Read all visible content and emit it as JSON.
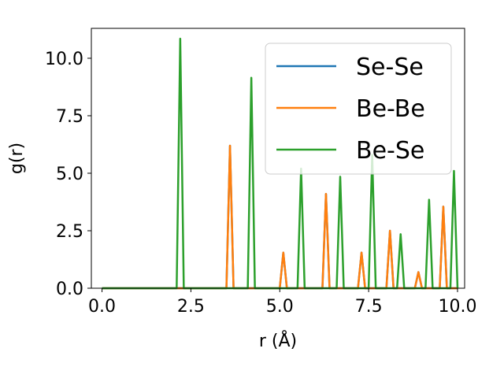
{
  "chart_data": {
    "type": "line",
    "xlabel": "r (Å)",
    "ylabel": "g(r)",
    "xlim": [
      -0.3,
      10.2
    ],
    "ylim": [
      0,
      11.3
    ],
    "xticks": [
      0.0,
      2.5,
      5.0,
      7.5,
      10.0
    ],
    "xtick_labels": [
      "0.0",
      "2.5",
      "5.0",
      "7.5",
      "10.0"
    ],
    "yticks": [
      0.0,
      2.5,
      5.0,
      7.5,
      10.0
    ],
    "ytick_labels": [
      "0.0",
      "2.5",
      "5.0",
      "7.5",
      "10.0"
    ],
    "grid": false,
    "legend_position": "upper right",
    "series": [
      {
        "name": "Se-Se",
        "color": "#1f77b4",
        "peaks": [
          [
            3.6,
            6.2
          ],
          [
            5.1,
            1.55
          ],
          [
            6.3,
            4.1
          ],
          [
            7.3,
            1.55
          ],
          [
            8.1,
            2.5
          ],
          [
            8.9,
            0.7
          ],
          [
            9.6,
            3.55
          ]
        ]
      },
      {
        "name": "Be-Be",
        "color": "#ff7f0e",
        "peaks": [
          [
            3.6,
            6.2
          ],
          [
            5.1,
            1.55
          ],
          [
            6.3,
            4.1
          ],
          [
            7.3,
            1.55
          ],
          [
            8.1,
            2.5
          ],
          [
            8.9,
            0.7
          ],
          [
            9.6,
            3.55
          ]
        ]
      },
      {
        "name": "Be-Se",
        "color": "#2ca02c",
        "peaks": [
          [
            2.2,
            10.85
          ],
          [
            4.2,
            9.15
          ],
          [
            5.6,
            5.2
          ],
          [
            6.7,
            4.85
          ],
          [
            7.6,
            5.8
          ],
          [
            8.4,
            2.35
          ],
          [
            9.2,
            3.85
          ],
          [
            9.9,
            5.1
          ]
        ]
      }
    ]
  }
}
